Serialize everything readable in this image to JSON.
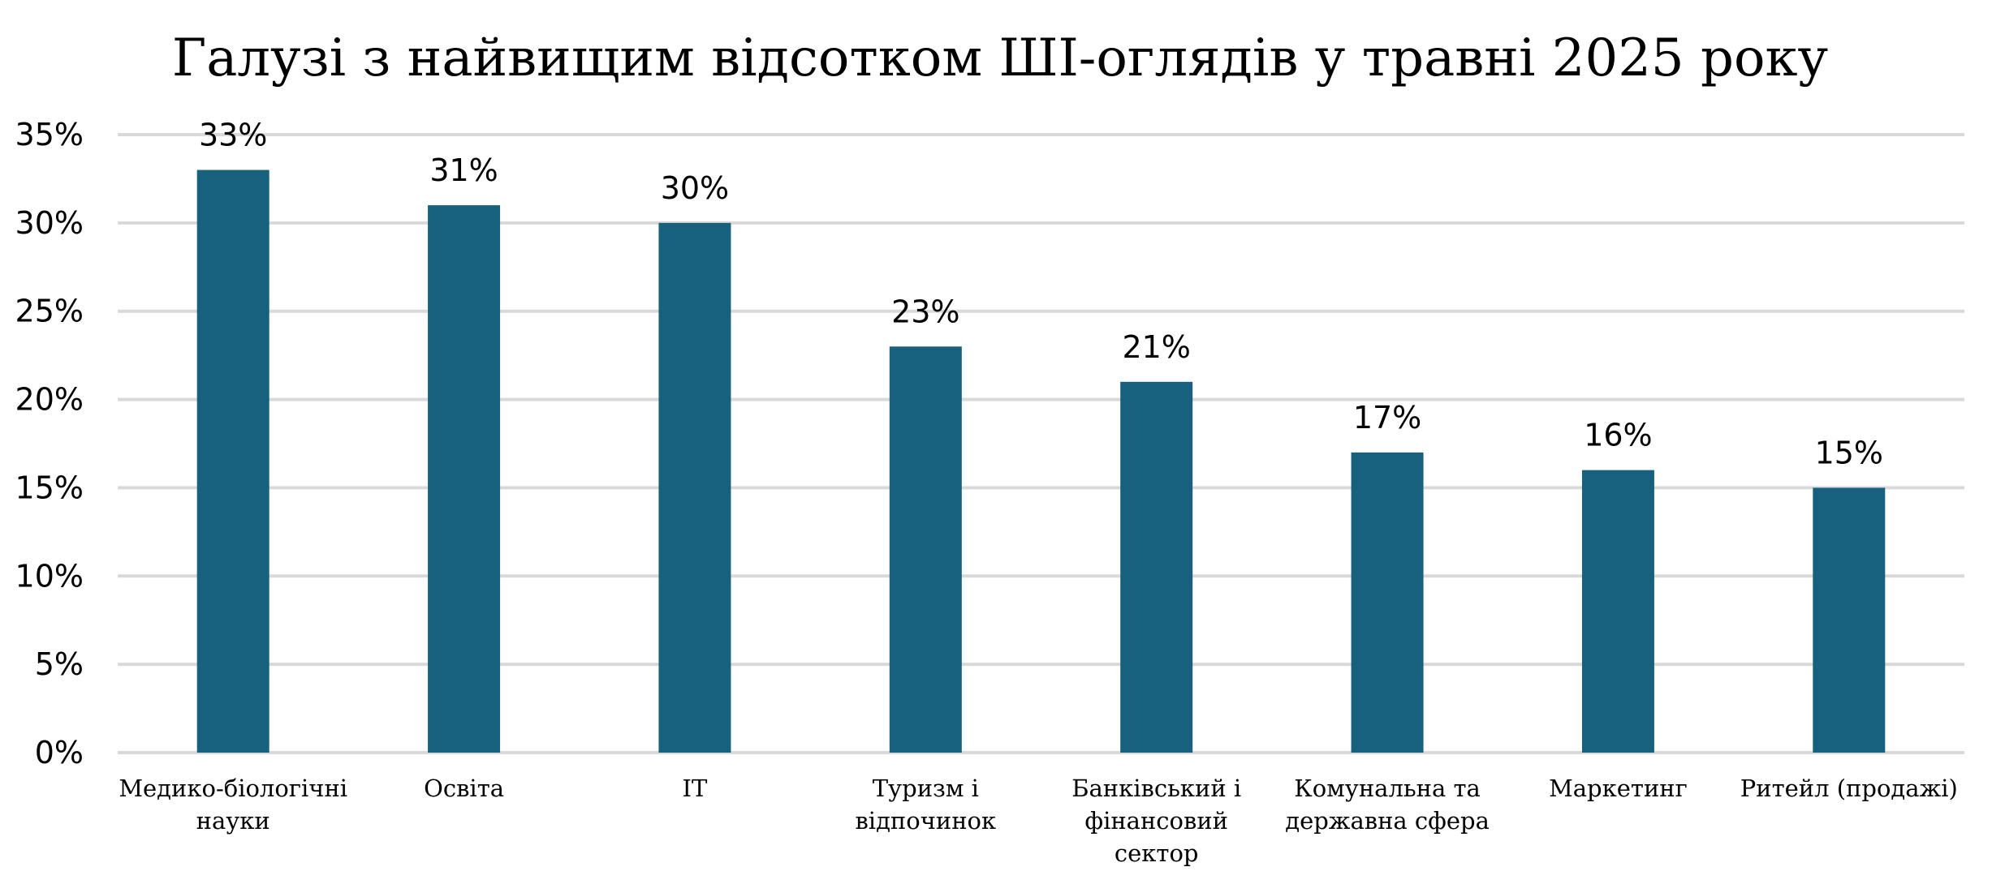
{
  "chart_data": {
    "type": "bar",
    "title": "Галузі з найвищим відсотком ШІ-оглядів у травні 2025 року",
    "xlabel": "",
    "ylabel": "",
    "ylim": [
      0,
      35
    ],
    "yticks": [
      0,
      5,
      10,
      15,
      20,
      25,
      30,
      35
    ],
    "ytick_labels": [
      "0%",
      "5%",
      "10%",
      "15%",
      "20%",
      "25%",
      "30%",
      "35%"
    ],
    "grid": true,
    "legend": "none",
    "bar_color": "#17617f",
    "gridline_color": "#d9d9d9",
    "categories": [
      [
        "Медико-біологічні",
        "науки"
      ],
      [
        "Освіта"
      ],
      [
        "IT"
      ],
      [
        "Туризм і",
        "відпочинок"
      ],
      [
        "Банківський і",
        "фінансовий",
        "сектор"
      ],
      [
        "Комунальна та",
        "державна сфера"
      ],
      [
        "Маркетинг"
      ],
      [
        "Ритейл (продажі)"
      ]
    ],
    "values": [
      33,
      31,
      30,
      23,
      21,
      17,
      16,
      15
    ],
    "data_labels": [
      "33%",
      "31%",
      "30%",
      "23%",
      "21%",
      "17%",
      "16%",
      "15%"
    ]
  }
}
